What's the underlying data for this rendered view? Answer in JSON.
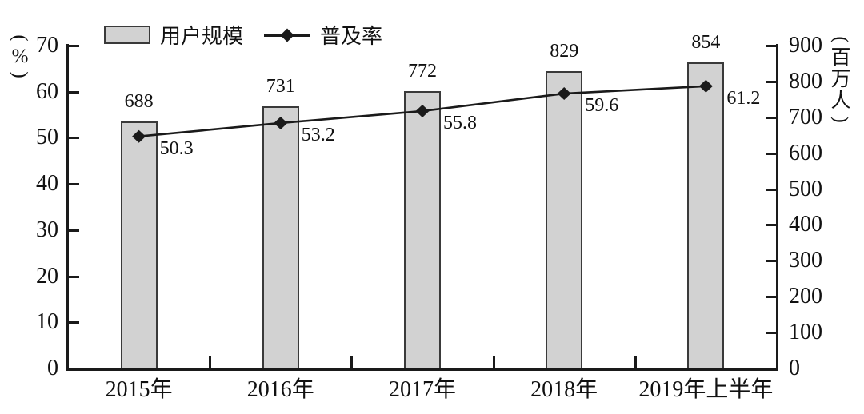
{
  "chart_data": {
    "type": "bar+line",
    "categories": [
      "2015年",
      "2016年",
      "2017年",
      "2018年",
      "2019年上半年"
    ],
    "series": [
      {
        "name": "用户规模",
        "kind": "bar",
        "axis": "right",
        "values": [
          688,
          731,
          772,
          829,
          854
        ]
      },
      {
        "name": "普及率",
        "kind": "line",
        "axis": "left",
        "values": [
          50.3,
          53.2,
          55.8,
          59.6,
          61.2
        ]
      }
    ],
    "legend": [
      {
        "label": "用户规模",
        "marker": "gray-bar-swatch"
      },
      {
        "label": "普及率",
        "marker": "black-line-with-diamond"
      }
    ],
    "left_axis": {
      "unit_label": "(%)",
      "min": 0,
      "max": 70,
      "step": 10,
      "ticks": [
        0,
        10,
        20,
        30,
        40,
        50,
        60,
        70
      ]
    },
    "right_axis": {
      "unit_label": "(百万人)",
      "min": 0,
      "max": 900,
      "step": 100,
      "ticks": [
        0,
        100,
        200,
        300,
        400,
        500,
        600,
        700,
        800,
        900
      ]
    },
    "grid": false,
    "legend_position": "top-left",
    "colors": {
      "bar_fill": "#d2d2d2",
      "bar_border": "#3a3a3a",
      "line_color": "#1a1a1a",
      "text_color": "#111111",
      "background": "#ffffff"
    }
  }
}
